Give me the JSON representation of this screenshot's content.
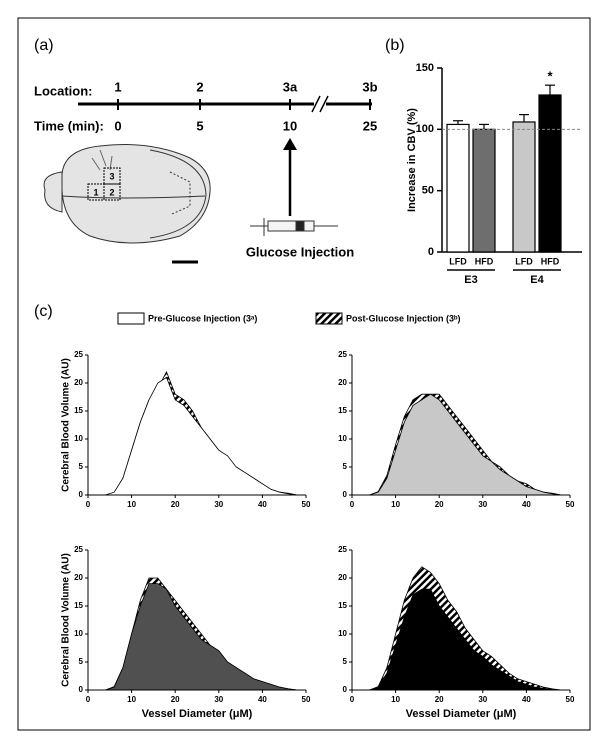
{
  "panel_labels": [
    "(a)",
    "(b)",
    "(c)"
  ],
  "timeline": {
    "location_label": "Location:",
    "locations": [
      "1",
      "2",
      "3a",
      "3b"
    ],
    "time_label": "Time (min):",
    "times": [
      "0",
      "5",
      "10",
      "25"
    ],
    "regions": [
      "1",
      "2",
      "3"
    ],
    "injection_label": "Glucose Injection"
  },
  "chart_data": [
    {
      "type": "bar",
      "ylabel": "Increase in CBV (%)",
      "categories": [
        "LFD",
        "HFD",
        "LFD",
        "HFD"
      ],
      "groups": [
        "E3",
        "E4"
      ],
      "values": [
        104,
        100,
        106,
        128
      ],
      "errors": [
        3,
        4,
        6,
        8
      ],
      "colors": [
        "#ffffff",
        "#6e6e6e",
        "#c8c8c8",
        "#000000"
      ],
      "ylim": [
        0,
        150
      ],
      "yticks": [
        0,
        50,
        100,
        150
      ],
      "refline": 100,
      "annotation": "*"
    },
    {
      "type": "area",
      "ylabel": "Cerebral Blood Volume (AU)",
      "xlim": [
        0,
        50
      ],
      "xticks": [
        0,
        10,
        20,
        30,
        40,
        50
      ],
      "ylim": [
        0,
        25
      ],
      "yticks": [
        0,
        5,
        10,
        15,
        20,
        25
      ],
      "x": [
        2,
        4,
        6,
        8,
        10,
        12,
        14,
        16,
        18,
        20,
        22,
        24,
        26,
        28,
        30,
        32,
        34,
        36,
        38,
        40,
        42,
        44,
        46,
        48
      ],
      "series": [
        {
          "name": "Post-Glucose Injection (3ᵇ)",
          "color": "#000000",
          "hatch": true,
          "values": [
            0,
            0,
            0.4,
            3,
            8,
            13,
            17,
            19,
            22,
            18,
            17,
            15,
            12,
            10,
            8,
            6,
            5,
            4,
            3,
            2,
            1,
            0.5,
            0.3,
            0
          ]
        },
        {
          "name": "Pre-Glucose Injection (3ᵃ)",
          "color": "#ffffff",
          "values": [
            0,
            0,
            0.5,
            3,
            8,
            13,
            17,
            20,
            21,
            17,
            16,
            14,
            12,
            10,
            8,
            7,
            5,
            4,
            3,
            2,
            1,
            0.5,
            0.2,
            0
          ]
        }
      ]
    },
    {
      "type": "area",
      "xlim": [
        0,
        50
      ],
      "xticks": [
        0,
        10,
        20,
        30,
        40,
        50
      ],
      "ylim": [
        0,
        25
      ],
      "yticks": [
        0,
        5,
        10,
        15,
        20,
        25
      ],
      "x": [
        2,
        4,
        6,
        8,
        10,
        12,
        14,
        16,
        18,
        20,
        22,
        24,
        26,
        28,
        30,
        32,
        34,
        36,
        38,
        40,
        42,
        44,
        46,
        48
      ],
      "series": [
        {
          "name": "Post-Glucose Injection (3ᵇ)",
          "color": "#000000",
          "hatch": true,
          "values": [
            0,
            0,
            0.6,
            3.5,
            9,
            14,
            17,
            18,
            18,
            18,
            16,
            14,
            12,
            10,
            8,
            6,
            5,
            3.5,
            2.5,
            2,
            1,
            0.5,
            0.3,
            0
          ]
        },
        {
          "name": "Pre-Glucose Injection (3ᵃ)",
          "color": "#c8c8c8",
          "values": [
            0,
            0,
            0.5,
            3,
            8,
            13,
            16,
            17,
            18,
            17,
            15,
            13,
            11,
            9,
            7,
            6,
            4.5,
            3.5,
            2.5,
            1.5,
            1,
            0.5,
            0.2,
            0
          ]
        }
      ]
    },
    {
      "type": "area",
      "ylabel": "Cerebral Blood Volume (AU)",
      "xlabel": "Vessel Diameter (μM)",
      "xlim": [
        0,
        50
      ],
      "xticks": [
        0,
        10,
        20,
        30,
        40,
        50
      ],
      "ylim": [
        0,
        25
      ],
      "yticks": [
        0,
        5,
        10,
        15,
        20,
        25
      ],
      "x": [
        2,
        4,
        6,
        8,
        10,
        12,
        14,
        16,
        18,
        20,
        22,
        24,
        26,
        28,
        30,
        32,
        34,
        36,
        38,
        40,
        42,
        44,
        46,
        48
      ],
      "series": [
        {
          "name": "Post-Glucose Injection (3ᵇ)",
          "color": "#000000",
          "hatch": true,
          "values": [
            0,
            0,
            0.6,
            4,
            10,
            16,
            20,
            20,
            18,
            16,
            14,
            12,
            10,
            8,
            7,
            5,
            4,
            3,
            2,
            1.5,
            1,
            0.5,
            0.2,
            0
          ]
        },
        {
          "name": "Pre-Glucose Injection (3ᵃ)",
          "color": "#505050",
          "values": [
            0,
            0,
            0.5,
            4,
            10,
            15,
            19,
            19,
            18,
            15,
            13,
            11,
            9,
            8,
            7,
            5,
            4,
            3,
            2,
            1.5,
            1,
            0.5,
            0.2,
            0
          ]
        }
      ]
    },
    {
      "type": "area",
      "xlabel": "Vessel Diameter (μM)",
      "xlim": [
        0,
        50
      ],
      "xticks": [
        0,
        10,
        20,
        30,
        40,
        50
      ],
      "ylim": [
        0,
        25
      ],
      "yticks": [
        0,
        5,
        10,
        15,
        20,
        25
      ],
      "x": [
        2,
        4,
        6,
        8,
        10,
        12,
        14,
        16,
        18,
        20,
        22,
        24,
        26,
        28,
        30,
        32,
        34,
        36,
        38,
        40,
        42,
        44,
        46,
        48
      ],
      "series": [
        {
          "name": "Post-Glucose Injection (3ᵇ)",
          "color": "#000000",
          "hatch": true,
          "values": [
            0,
            0,
            0.6,
            4,
            10,
            16,
            20,
            22,
            21,
            19,
            16,
            14,
            11,
            9,
            7,
            6,
            4.5,
            3,
            2,
            1.5,
            1,
            0.5,
            0.2,
            0
          ]
        },
        {
          "name": "Pre-Glucose Injection (3ᵃ)",
          "color": "#000000",
          "values": [
            0,
            0,
            0.5,
            3,
            8,
            13,
            17,
            18,
            18,
            15,
            13,
            11,
            9,
            7,
            6,
            4.5,
            3.5,
            2.5,
            1.5,
            1,
            0.5,
            0.3,
            0.1,
            0
          ]
        }
      ]
    }
  ]
}
